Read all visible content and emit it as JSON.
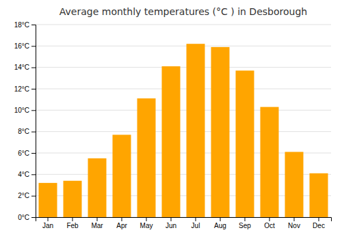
{
  "chart_data": {
    "type": "bar",
    "title": "Average monthly temperatures (°C ) in Desborough",
    "categories": [
      "Jan",
      "Feb",
      "Mar",
      "Apr",
      "May",
      "Jun",
      "Jul",
      "Aug",
      "Sep",
      "Oct",
      "Nov",
      "Dec"
    ],
    "values": [
      3.2,
      3.4,
      5.5,
      7.7,
      11.1,
      14.1,
      16.2,
      15.9,
      13.7,
      10.3,
      6.1,
      4.1
    ],
    "color": "#FFA500",
    "ylim": [
      0,
      18
    ],
    "yticks": [
      {
        "value": 0,
        "label": "0°C"
      },
      {
        "value": 2,
        "label": "2°C"
      },
      {
        "value": 4,
        "label": "4°C"
      },
      {
        "value": 6,
        "label": "6°C"
      },
      {
        "value": 8,
        "label": "8°C"
      },
      {
        "value": 10,
        "label": "10°C"
      },
      {
        "value": 12,
        "label": "12°C"
      },
      {
        "value": 14,
        "label": "14°C"
      },
      {
        "value": 16,
        "label": "16°C"
      },
      {
        "value": 18,
        "label": "18°C"
      }
    ],
    "grid": true
  }
}
